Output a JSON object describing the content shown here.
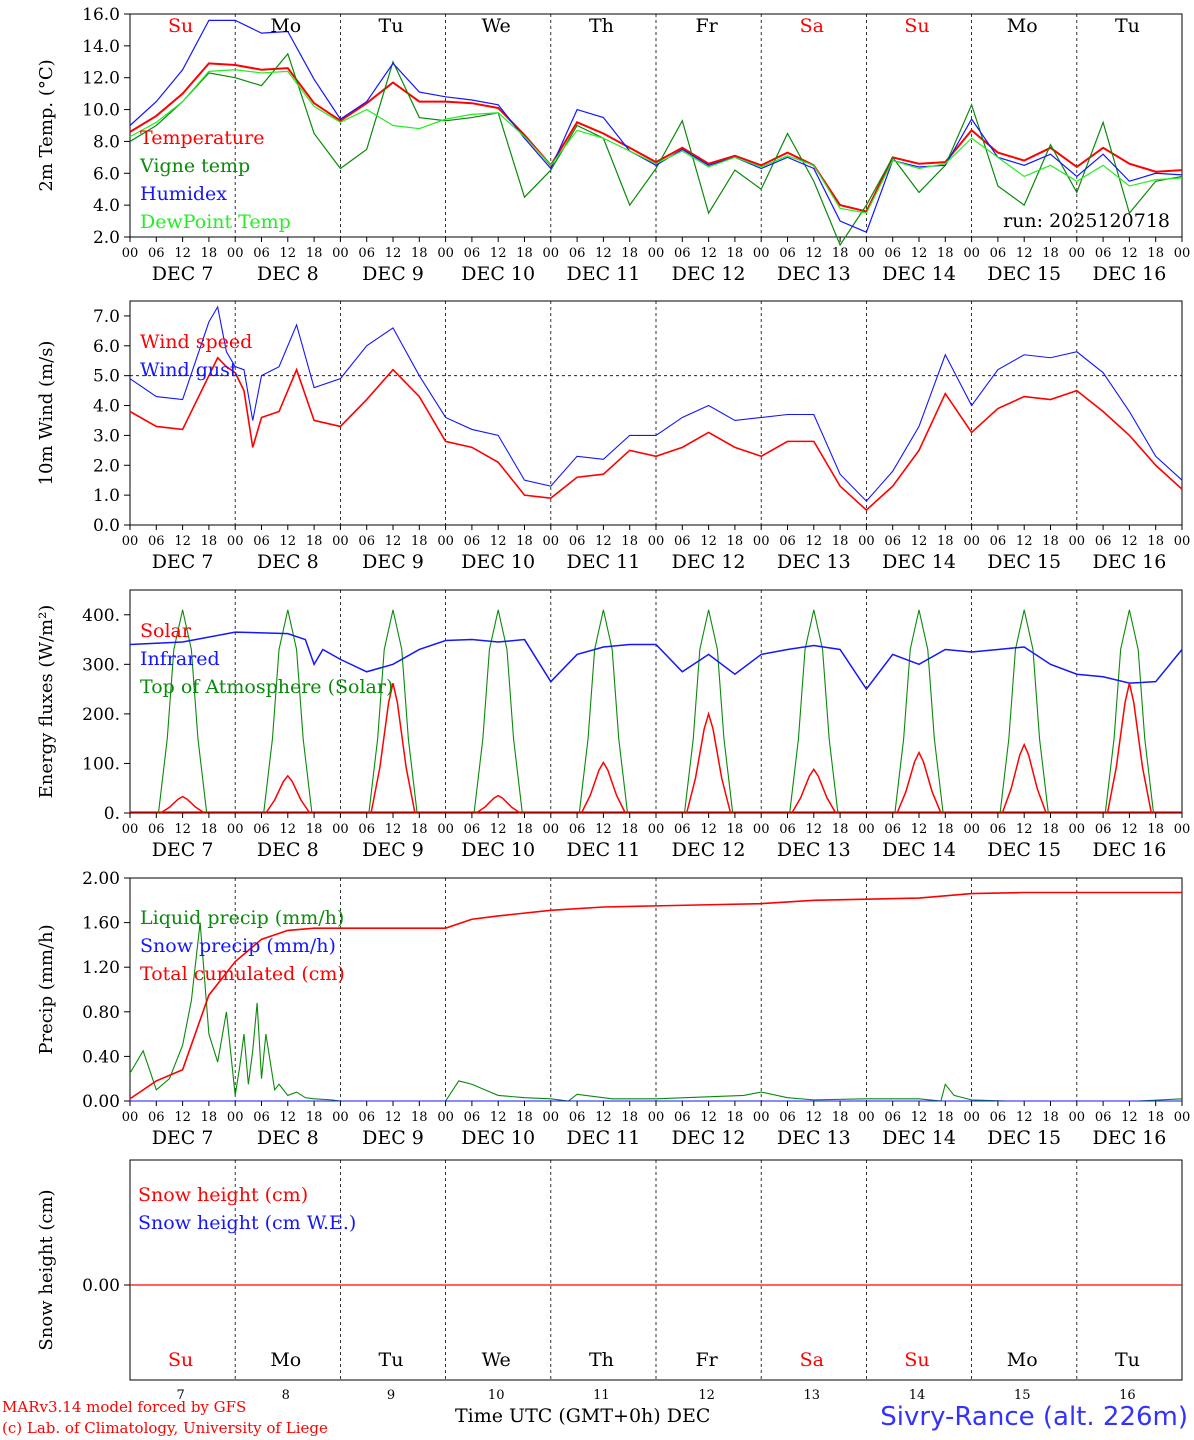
{
  "footer": {
    "credit1": "MARv3.14 model forced by GFS",
    "credit2": "(c) Lab. of Climatology, University of Liege",
    "station": "Sivry-Rance (alt. 226m)",
    "xaxis_label": "Time UTC (GMT+0h) DEC"
  },
  "colors": {
    "red": "#ff0000",
    "green": "#0a8a0a",
    "blue": "#1515ff",
    "lightgreen": "#22ee22"
  },
  "chart_data": [
    {
      "type": "line",
      "title": "2m Temp. (°C)",
      "ylabel": "2m Temp. (°C)",
      "ylim": [
        2,
        16
      ],
      "yticks": [
        "2.0",
        "4.0",
        "6.0",
        "8.0",
        "10.0",
        "12.0",
        "14.0",
        "16.0"
      ],
      "ytick_values": [
        2,
        4,
        6,
        8,
        10,
        12,
        14,
        16
      ],
      "day_names": [
        "Su",
        "Mo",
        "Tu",
        "We",
        "Th",
        "Fr",
        "Sa",
        "Su",
        "Mo",
        "Tu"
      ],
      "day_name_colors": [
        "red",
        "black",
        "black",
        "black",
        "black",
        "black",
        "red",
        "red",
        "black",
        "black"
      ],
      "date_labels": [
        "DEC  7",
        "DEC  8",
        "DEC  9",
        "DEC 10",
        "DEC 11",
        "DEC 12",
        "DEC 13",
        "DEC 14",
        "DEC 15",
        "DEC 16"
      ],
      "hour_labels": [
        "00",
        "06",
        "12",
        "18"
      ],
      "annotation": "run: 2025120718",
      "x_unit": "hours since 7 Dec 00 UTC",
      "series": [
        {
          "name": "Temperature",
          "color": "red",
          "x": [
            0,
            6,
            12,
            18,
            24,
            30,
            36,
            42,
            48,
            54,
            60,
            66,
            72,
            78,
            84,
            90,
            96,
            102,
            108,
            114,
            120,
            126,
            132,
            138,
            144,
            150,
            156,
            162,
            168,
            174,
            180,
            186,
            192,
            198,
            204,
            210,
            216,
            222,
            228,
            234,
            240
          ],
          "y": [
            8.6,
            9.6,
            11,
            12.9,
            12.8,
            12.5,
            12.6,
            10.4,
            9.3,
            10.4,
            11.7,
            10.5,
            10.5,
            10.4,
            10.1,
            8.4,
            6.5,
            9.2,
            8.5,
            7.6,
            6.7,
            7.6,
            6.6,
            7.1,
            6.5,
            7.3,
            6.5,
            4.0,
            3.6,
            7.0,
            6.6,
            6.7,
            8.7,
            7.3,
            6.8,
            7.6,
            6.4,
            7.6,
            6.6,
            6.1,
            6.2
          ]
        },
        {
          "name": "Vigne temp",
          "color": "green",
          "x": [
            0,
            6,
            12,
            18,
            24,
            30,
            36,
            42,
            48,
            54,
            60,
            66,
            72,
            78,
            84,
            90,
            96,
            102,
            108,
            114,
            120,
            126,
            132,
            138,
            144,
            150,
            156,
            162,
            168,
            174,
            180,
            186,
            192,
            198,
            204,
            210,
            216,
            222,
            228,
            234,
            240
          ],
          "y": [
            8.0,
            9.0,
            10.5,
            12.3,
            12.0,
            11.5,
            13.5,
            8.5,
            6.3,
            7.5,
            13.0,
            9.5,
            9.3,
            9.5,
            9.8,
            4.5,
            6.2,
            9.0,
            8.2,
            4.0,
            6.3,
            9.3,
            3.5,
            6.2,
            5.0,
            8.5,
            5.5,
            1.5,
            4.0,
            7.0,
            4.8,
            6.5,
            10.3,
            5.2,
            4.0,
            7.8,
            4.8,
            9.2,
            3.5,
            5.5,
            5.8
          ]
        },
        {
          "name": "Humidex",
          "color": "blue",
          "x": [
            0,
            6,
            12,
            18,
            24,
            30,
            36,
            42,
            48,
            54,
            60,
            66,
            72,
            78,
            84,
            90,
            96,
            102,
            108,
            114,
            120,
            126,
            132,
            138,
            144,
            150,
            156,
            162,
            168,
            174,
            180,
            186,
            192,
            198,
            204,
            210,
            216,
            222,
            228,
            234,
            240
          ],
          "y": [
            9.0,
            10.5,
            12.5,
            15.6,
            15.6,
            14.8,
            14.9,
            11.9,
            9.4,
            10.5,
            12.9,
            11.1,
            10.8,
            10.6,
            10.3,
            8.2,
            6.3,
            10.0,
            9.5,
            7.4,
            6.5,
            7.5,
            6.5,
            7.0,
            6.3,
            7.0,
            6.3,
            3.0,
            2.3,
            6.8,
            6.4,
            6.5,
            9.4,
            7.0,
            6.5,
            7.2,
            5.8,
            7.2,
            5.5,
            6.0,
            5.9
          ]
        },
        {
          "name": "DewPoint Temp",
          "color": "lightgreen",
          "x": [
            0,
            6,
            12,
            18,
            24,
            30,
            36,
            42,
            48,
            54,
            60,
            66,
            72,
            78,
            84,
            90,
            96,
            102,
            108,
            114,
            120,
            126,
            132,
            138,
            144,
            150,
            156,
            162,
            168,
            174,
            180,
            186,
            192,
            198,
            204,
            210,
            216,
            222,
            228,
            234,
            240
          ],
          "y": [
            8.3,
            9.2,
            10.5,
            12.4,
            12.5,
            12.3,
            12.4,
            10.2,
            9.2,
            10.0,
            9.0,
            8.8,
            9.4,
            9.7,
            9.8,
            8.3,
            6.5,
            8.7,
            8.2,
            7.4,
            6.6,
            7.4,
            6.4,
            7.0,
            6.4,
            7.1,
            6.5,
            3.8,
            3.5,
            6.8,
            6.3,
            6.6,
            8.2,
            7.0,
            5.8,
            6.5,
            5.5,
            6.5,
            5.2,
            5.6,
            5.7
          ]
        }
      ]
    },
    {
      "type": "line",
      "title": "10m Wind (m/s)",
      "ylabel": "10m Wind (m/s)",
      "ylim": [
        0,
        7.5
      ],
      "yticks": [
        "0.0",
        "1.0",
        "2.0",
        "3.0",
        "4.0",
        "5.0",
        "6.0",
        "7.0"
      ],
      "ytick_values": [
        0,
        1,
        2,
        3,
        4,
        5,
        6,
        7
      ],
      "date_labels": [
        "DEC  7",
        "DEC  8",
        "DEC  9",
        "DEC 10",
        "DEC 11",
        "DEC 12",
        "DEC 13",
        "DEC 14",
        "DEC 15",
        "DEC 16"
      ],
      "hour_labels": [
        "00",
        "06",
        "12",
        "18"
      ],
      "reference_line": 5.0,
      "series": [
        {
          "name": "Wind speed",
          "color": "red",
          "x": [
            0,
            6,
            12,
            18,
            20,
            22,
            24,
            26,
            28,
            30,
            34,
            38,
            42,
            48,
            54,
            60,
            66,
            72,
            78,
            84,
            90,
            96,
            102,
            108,
            114,
            120,
            126,
            132,
            138,
            144,
            150,
            156,
            162,
            168,
            174,
            180,
            186,
            192,
            198,
            204,
            210,
            216,
            222,
            228,
            234,
            240
          ],
          "y": [
            3.8,
            3.3,
            3.2,
            5.0,
            5.6,
            5.3,
            5.1,
            4.5,
            2.6,
            3.6,
            3.8,
            5.2,
            3.5,
            3.3,
            4.2,
            5.2,
            4.3,
            2.8,
            2.6,
            2.1,
            1.0,
            0.9,
            1.6,
            1.7,
            2.5,
            2.3,
            2.6,
            3.1,
            2.6,
            2.3,
            2.8,
            2.8,
            1.3,
            0.5,
            1.3,
            2.5,
            4.4,
            3.1,
            3.9,
            4.3,
            4.2,
            4.5,
            3.8,
            3.0,
            2.0,
            1.2
          ]
        },
        {
          "name": "Wind gust",
          "color": "blue",
          "x": [
            0,
            6,
            12,
            18,
            20,
            22,
            24,
            26,
            28,
            30,
            34,
            38,
            42,
            48,
            54,
            60,
            66,
            72,
            78,
            84,
            90,
            96,
            102,
            108,
            114,
            120,
            126,
            132,
            138,
            144,
            150,
            156,
            162,
            168,
            174,
            180,
            186,
            192,
            198,
            204,
            210,
            216,
            222,
            228,
            234,
            240
          ],
          "y": [
            4.9,
            4.3,
            4.2,
            6.8,
            7.3,
            5.8,
            5.3,
            5.2,
            3.5,
            5.0,
            5.3,
            6.7,
            4.6,
            4.9,
            6.0,
            6.6,
            5.0,
            3.6,
            3.2,
            3.0,
            1.5,
            1.3,
            2.3,
            2.2,
            3.0,
            3.0,
            3.6,
            4.0,
            3.5,
            3.6,
            3.7,
            3.7,
            1.7,
            0.8,
            1.8,
            3.3,
            5.7,
            4.0,
            5.2,
            5.7,
            5.6,
            5.8,
            5.1,
            3.8,
            2.3,
            1.5
          ]
        }
      ]
    },
    {
      "type": "line",
      "title": "Energy fluxes (W/m²)",
      "ylabel": "Energy fluxes (W/m²)",
      "ylim": [
        0,
        450
      ],
      "yticks": [
        "0.",
        "100.",
        "200.",
        "300.",
        "400."
      ],
      "ytick_values": [
        0,
        100,
        200,
        300,
        400
      ],
      "date_labels": [
        "DEC  7",
        "DEC  8",
        "DEC  9",
        "DEC 10",
        "DEC 11",
        "DEC 12",
        "DEC 13",
        "DEC 14",
        "DEC 15",
        "DEC 16"
      ],
      "hour_labels": [
        "00",
        "06",
        "12",
        "18"
      ],
      "solar_peaks_by_day": [
        33,
        75,
        262,
        35,
        102,
        200,
        88,
        122,
        138,
        262
      ],
      "toa_peak": 410,
      "series": [
        {
          "name": "Solar",
          "color": "red"
        },
        {
          "name": "Infrared",
          "color": "blue",
          "x": [
            0,
            12,
            24,
            36,
            40,
            42,
            44,
            48,
            54,
            60,
            66,
            72,
            78,
            84,
            90,
            96,
            102,
            108,
            114,
            120,
            126,
            132,
            138,
            144,
            150,
            156,
            162,
            168,
            174,
            180,
            186,
            192,
            198,
            204,
            210,
            216,
            222,
            228,
            234,
            240
          ],
          "y": [
            340,
            345,
            365,
            362,
            350,
            300,
            330,
            310,
            285,
            300,
            330,
            348,
            350,
            345,
            350,
            265,
            320,
            335,
            340,
            340,
            285,
            320,
            280,
            320,
            330,
            338,
            330,
            250,
            320,
            300,
            330,
            325,
            330,
            335,
            300,
            280,
            275,
            262,
            265,
            330
          ]
        },
        {
          "name": "Top of Atmosphere (Solar)",
          "color": "green"
        }
      ]
    },
    {
      "type": "line",
      "title": "Precip (mm/h)",
      "ylabel": "Precip (mm/h)",
      "ylim": [
        0,
        2
      ],
      "yticks": [
        "0.00",
        "0.40",
        "0.80",
        "1.20",
        "1.60",
        "2.00"
      ],
      "ytick_values": [
        0,
        0.4,
        0.8,
        1.2,
        1.6,
        2.0
      ],
      "date_labels": [
        "DEC  7",
        "DEC  8",
        "DEC  9",
        "DEC 10",
        "DEC 11",
        "DEC 12",
        "DEC 13",
        "DEC 14",
        "DEC 15",
        "DEC 16"
      ],
      "hour_labels": [
        "00",
        "06",
        "12",
        "18"
      ],
      "series": [
        {
          "name": "Liquid precip (mm/h)",
          "color": "green",
          "x": [
            0,
            3,
            6,
            9,
            12,
            14,
            16,
            18,
            20,
            22,
            24,
            25,
            26,
            27,
            28,
            29,
            30,
            31,
            32,
            33,
            34,
            36,
            38,
            40,
            42,
            46,
            48,
            60,
            72,
            75,
            78,
            81,
            84,
            90,
            96,
            100,
            102,
            110,
            120,
            140,
            144,
            150,
            156,
            168,
            180,
            185,
            186,
            188,
            192,
            200,
            210,
            220,
            230,
            240
          ],
          "y": [
            0.25,
            0.45,
            0.1,
            0.2,
            0.5,
            0.9,
            1.6,
            0.6,
            0.35,
            0.8,
            0.05,
            0.3,
            0.6,
            0.15,
            0.45,
            0.88,
            0.2,
            0.6,
            0.35,
            0.1,
            0.15,
            0.05,
            0.08,
            0.03,
            0.02,
            0.01,
            0.0,
            0.0,
            0.0,
            0.18,
            0.15,
            0.1,
            0.05,
            0.03,
            0.02,
            0.0,
            0.06,
            0.02,
            0.02,
            0.05,
            0.08,
            0.03,
            0.01,
            0.02,
            0.02,
            0.0,
            0.15,
            0.05,
            0.01,
            0.0,
            0.0,
            0.0,
            0.0,
            0.02
          ]
        },
        {
          "name": "Snow precip (mm/h)",
          "color": "blue",
          "x": [
            0,
            240
          ],
          "y": [
            0,
            0
          ]
        },
        {
          "name": "Total cumulated (cm)",
          "color": "red",
          "x": [
            0,
            6,
            12,
            18,
            24,
            30,
            36,
            42,
            48,
            54,
            60,
            66,
            72,
            78,
            84,
            96,
            108,
            120,
            132,
            144,
            156,
            168,
            180,
            186,
            192,
            204,
            216,
            228,
            240
          ],
          "y": [
            0.02,
            0.18,
            0.28,
            0.95,
            1.25,
            1.45,
            1.53,
            1.55,
            1.55,
            1.55,
            1.55,
            1.55,
            1.55,
            1.63,
            1.66,
            1.71,
            1.74,
            1.75,
            1.76,
            1.77,
            1.8,
            1.81,
            1.82,
            1.84,
            1.86,
            1.87,
            1.87,
            1.87,
            1.87
          ]
        }
      ]
    },
    {
      "type": "line",
      "title": "Snow height (cm)",
      "ylabel": "Snow height (cm)",
      "yticks": [
        "0.00"
      ],
      "ytick_values": [
        0
      ],
      "day_names": [
        "Su",
        "Mo",
        "Tu",
        "We",
        "Th",
        "Fr",
        "Sa",
        "Su",
        "Mo",
        "Tu"
      ],
      "day_name_colors": [
        "red",
        "black",
        "black",
        "black",
        "black",
        "black",
        "red",
        "red",
        "black",
        "black"
      ],
      "day_numbers": [
        "7",
        "8",
        "9",
        "10",
        "11",
        "12",
        "13",
        "14",
        "15",
        "16"
      ],
      "series": [
        {
          "name": "Snow height (cm)",
          "color": "red",
          "x": [
            0,
            240
          ],
          "y": [
            0,
            0
          ]
        },
        {
          "name": "Snow height (cm W.E.)",
          "color": "blue",
          "x": [
            0,
            240
          ],
          "y": [
            0,
            0
          ]
        }
      ]
    }
  ]
}
